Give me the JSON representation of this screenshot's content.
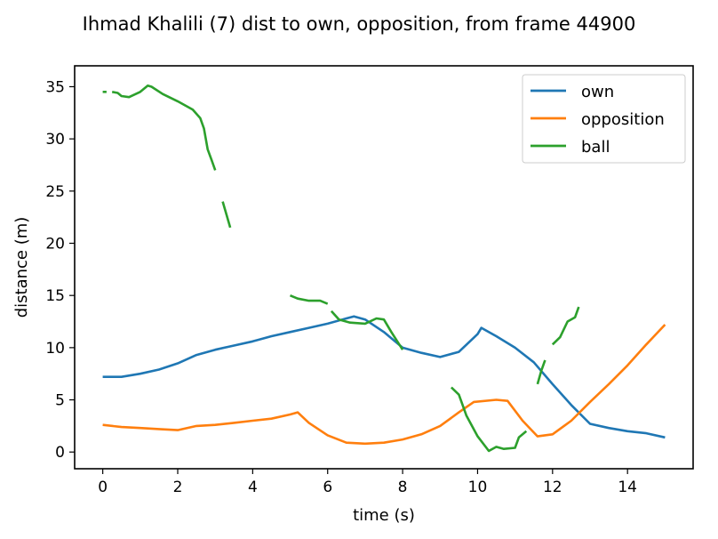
{
  "chart_data": {
    "type": "line",
    "title": "Ihmad Khalili (7) dist to own, opposition, from frame 44900",
    "xlabel": "time (s)",
    "ylabel": "distance (m)",
    "xlim": [
      -0.75,
      15.75
    ],
    "ylim": [
      -1.6,
      37.0
    ],
    "xticks": [
      0,
      2,
      4,
      6,
      8,
      10,
      12,
      14
    ],
    "yticks": [
      0,
      5,
      10,
      15,
      20,
      25,
      30,
      35
    ],
    "grid": false,
    "legend_position": "top-right",
    "series": [
      {
        "name": "own",
        "color": "#1f77b4",
        "segments": [
          [
            [
              0,
              7.2
            ],
            [
              0.5,
              7.2
            ],
            [
              1,
              7.5
            ],
            [
              1.5,
              7.9
            ],
            [
              2,
              8.5
            ],
            [
              2.5,
              9.3
            ],
            [
              3,
              9.8
            ],
            [
              3.5,
              10.2
            ],
            [
              4,
              10.6
            ],
            [
              4.5,
              11.1
            ],
            [
              5,
              11.5
            ],
            [
              5.5,
              11.9
            ],
            [
              6,
              12.3
            ],
            [
              6.5,
              12.8
            ],
            [
              6.7,
              13.0
            ],
            [
              7,
              12.7
            ],
            [
              7.5,
              11.5
            ],
            [
              8,
              10.0
            ],
            [
              8.5,
              9.5
            ],
            [
              9,
              9.1
            ],
            [
              9.5,
              9.6
            ],
            [
              10,
              11.3
            ],
            [
              10.1,
              11.9
            ],
            [
              10.5,
              11.1
            ],
            [
              11,
              10.0
            ],
            [
              11.5,
              8.6
            ],
            [
              12,
              6.5
            ],
            [
              12.5,
              4.5
            ],
            [
              13,
              2.7
            ],
            [
              13.5,
              2.3
            ],
            [
              14,
              2.0
            ],
            [
              14.5,
              1.8
            ],
            [
              15,
              1.4
            ]
          ]
        ]
      },
      {
        "name": "opposition",
        "color": "#ff7f0e",
        "segments": [
          [
            [
              0,
              2.6
            ],
            [
              0.5,
              2.4
            ],
            [
              1,
              2.3
            ],
            [
              1.5,
              2.2
            ],
            [
              2,
              2.1
            ],
            [
              2.5,
              2.5
            ],
            [
              3,
              2.6
            ],
            [
              3.5,
              2.8
            ],
            [
              4,
              3.0
            ],
            [
              4.5,
              3.2
            ],
            [
              5,
              3.6
            ],
            [
              5.2,
              3.8
            ],
            [
              5.5,
              2.8
            ],
            [
              6,
              1.6
            ],
            [
              6.5,
              0.9
            ],
            [
              7,
              0.8
            ],
            [
              7.5,
              0.9
            ],
            [
              8,
              1.2
            ],
            [
              8.5,
              1.7
            ],
            [
              9,
              2.5
            ],
            [
              9.5,
              3.8
            ],
            [
              9.9,
              4.8
            ],
            [
              10.5,
              5.0
            ],
            [
              10.8,
              4.9
            ],
            [
              11.2,
              3.0
            ],
            [
              11.6,
              1.5
            ],
            [
              12,
              1.7
            ],
            [
              12.5,
              3.0
            ],
            [
              13,
              4.8
            ],
            [
              13.5,
              6.5
            ],
            [
              14,
              8.3
            ],
            [
              14.5,
              10.3
            ],
            [
              15,
              12.2
            ]
          ]
        ]
      },
      {
        "name": "ball",
        "color": "#2ca02c",
        "segments": [
          [
            [
              0,
              34.5
            ],
            [
              0.1,
              34.5
            ]
          ],
          [
            [
              0.25,
              34.5
            ],
            [
              0.4,
              34.4
            ],
            [
              0.5,
              34.1
            ],
            [
              0.7,
              34.0
            ],
            [
              1,
              34.5
            ],
            [
              1.2,
              35.1
            ],
            [
              1.3,
              35.0
            ],
            [
              1.6,
              34.3
            ],
            [
              2,
              33.6
            ],
            [
              2.4,
              32.8
            ],
            [
              2.6,
              32.0
            ],
            [
              2.7,
              31.0
            ],
            [
              2.8,
              29.0
            ],
            [
              2.9,
              28.0
            ],
            [
              3.0,
              27.0
            ]
          ],
          [
            [
              3.2,
              24.0
            ],
            [
              3.4,
              21.5
            ]
          ],
          [
            [
              5.0,
              15.0
            ],
            [
              5.2,
              14.7
            ],
            [
              5.5,
              14.5
            ],
            [
              5.8,
              14.5
            ],
            [
              6.0,
              14.2
            ]
          ],
          [
            [
              6.1,
              13.5
            ],
            [
              6.3,
              12.7
            ],
            [
              6.6,
              12.4
            ],
            [
              7.0,
              12.3
            ],
            [
              7.3,
              12.8
            ],
            [
              7.5,
              12.7
            ],
            [
              7.7,
              11.5
            ],
            [
              8.0,
              9.8
            ]
          ],
          [
            [
              9.3,
              6.2
            ],
            [
              9.5,
              5.5
            ],
            [
              9.7,
              3.5
            ],
            [
              10.0,
              1.5
            ],
            [
              10.3,
              0.1
            ],
            [
              10.5,
              0.5
            ],
            [
              10.7,
              0.3
            ],
            [
              11.0,
              0.4
            ],
            [
              11.1,
              1.4
            ],
            [
              11.3,
              2.0
            ]
          ],
          [
            [
              11.6,
              6.5
            ],
            [
              11.7,
              7.8
            ],
            [
              11.8,
              8.8
            ]
          ],
          [
            [
              12.0,
              10.3
            ],
            [
              12.2,
              11.0
            ],
            [
              12.4,
              12.5
            ],
            [
              12.6,
              12.9
            ],
            [
              12.7,
              13.9
            ]
          ]
        ]
      }
    ]
  }
}
